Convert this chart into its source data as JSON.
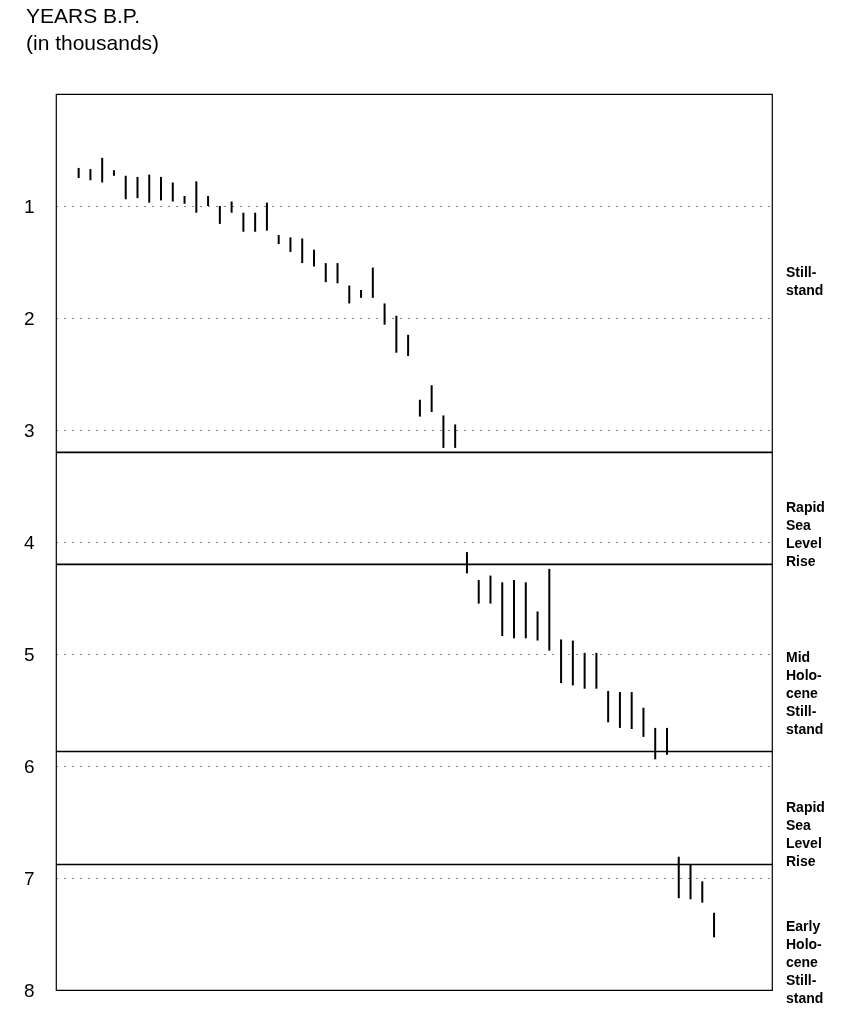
{
  "chart_data": {
    "type": "bar",
    "ylabel": "YEARS B.P.\n(in thousands)",
    "categories": [
      null,
      null,
      null,
      null,
      null,
      null,
      null,
      null,
      null,
      null,
      null,
      null,
      null,
      null,
      null,
      null,
      null,
      null,
      null,
      null,
      null,
      null,
      null,
      null,
      null,
      null,
      null,
      null,
      null,
      null,
      null,
      null,
      null,
      null,
      null,
      null,
      null,
      null,
      null,
      null,
      null,
      null,
      null,
      null,
      null,
      null,
      null,
      null,
      null,
      null,
      null,
      null,
      null,
      null,
      null,
      null,
      null,
      null,
      null,
      null
    ],
    "base": [
      null,
      0.66,
      0.67,
      0.57,
      0.68,
      0.73,
      0.74,
      0.72,
      0.74,
      0.79,
      0.91,
      0.78,
      0.91,
      1.0,
      0.96,
      1.06,
      1.06,
      0.97,
      1.26,
      1.28,
      1.29,
      1.39,
      1.51,
      1.51,
      1.71,
      1.75,
      1.55,
      1.87,
      1.98,
      2.15,
      2.73,
      2.6,
      2.87,
      2.95,
      4.09,
      4.34,
      4.3,
      4.36,
      4.34,
      4.36,
      4.62,
      4.24,
      4.87,
      4.88,
      4.99,
      4.99,
      5.33,
      5.34,
      5.34,
      5.48,
      5.66,
      5.66,
      6.81,
      6.88,
      7.03,
      7.31,
      null,
      null,
      null,
      null
    ],
    "values": [
      null,
      0.09,
      0.1,
      0.22,
      0.05,
      0.21,
      0.19,
      0.25,
      0.21,
      0.17,
      0.07,
      0.28,
      0.09,
      0.16,
      0.1,
      0.17,
      0.17,
      0.25,
      0.08,
      0.13,
      0.22,
      0.15,
      0.17,
      0.18,
      0.16,
      0.07,
      0.27,
      0.19,
      0.33,
      0.19,
      0.15,
      0.24,
      0.29,
      0.21,
      0.19,
      0.21,
      0.25,
      0.48,
      0.52,
      0.5,
      0.26,
      0.73,
      0.39,
      0.4,
      0.32,
      0.32,
      0.28,
      0.32,
      0.33,
      0.26,
      0.28,
      0.24,
      0.37,
      0.31,
      0.19,
      0.22,
      null,
      null,
      null,
      null
    ],
    "color": "#000000",
    "ylim": [
      8,
      0
    ],
    "yticks": [
      1,
      2,
      3,
      4,
      5,
      6,
      7,
      8
    ],
    "grid": "y",
    "tick_labels": "y",
    "ref_lines": [
      {
        "axis": "y",
        "value": 3.2,
        "color": "#000000"
      },
      {
        "axis": "y",
        "value": 4.2,
        "color": "#000000"
      },
      {
        "axis": "y",
        "value": 5.87,
        "color": "#000000"
      },
      {
        "axis": "y",
        "value": 6.88,
        "color": "#000000"
      }
    ],
    "annotations": [
      "Still-\nstand",
      "Rapid\nSea\nLevel\nRise",
      "Mid\nHolo-\ncene\nStill-\nstand",
      "Rapid\nSea\nLevel\nRise",
      "Early\nHolo-\ncene\nStill-\nstand"
    ]
  }
}
